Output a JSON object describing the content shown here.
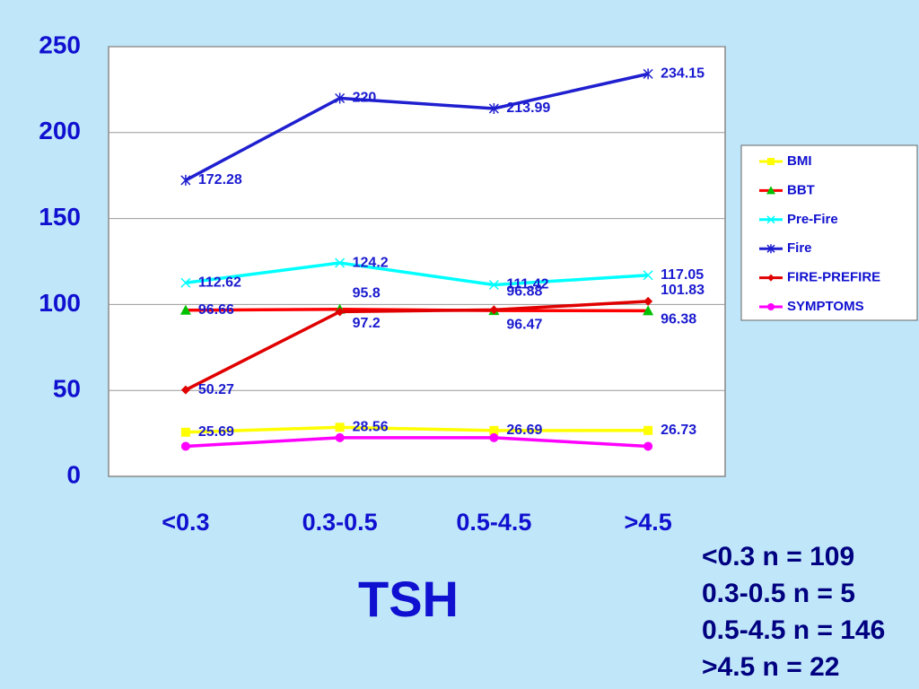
{
  "chart_data": {
    "type": "line",
    "categories": [
      "<0.3",
      "0.3-0.5",
      "0.5-4.5",
      ">4.5"
    ],
    "series": [
      {
        "name": "BMI",
        "color": "#ffff00",
        "marker": "square",
        "marker_color": "#ffff00",
        "values": [
          25.69,
          28.56,
          26.69,
          26.73
        ],
        "labels": true
      },
      {
        "name": "BBT",
        "color": "#ff0000",
        "marker": "triangle",
        "marker_color": "#00c000",
        "values": [
          96.66,
          97.2,
          96.47,
          96.38
        ],
        "labels": true
      },
      {
        "name": "Pre-Fire",
        "color": "#00ffff",
        "marker": "x",
        "marker_color": "#00ffff",
        "values": [
          112.62,
          124.2,
          111.42,
          117.05
        ],
        "labels": true
      },
      {
        "name": "Fire",
        "color": "#1f1fd0",
        "marker": "asterisk",
        "marker_color": "#1f1fd0",
        "values": [
          172.28,
          220,
          213.99,
          234.15
        ],
        "labels": true
      },
      {
        "name": "FIRE-PREFIRE",
        "color": "#e00000",
        "marker": "diamond",
        "marker_color": "#e00000",
        "values": [
          50.27,
          95.8,
          96.88,
          101.83
        ],
        "labels": true
      },
      {
        "name": "SYMPTOMS",
        "color": "#ff00ff",
        "marker": "circle",
        "marker_color": "#ff00ff",
        "values": [
          17.5,
          22.5,
          22.5,
          17.5
        ],
        "labels": false
      }
    ],
    "ylim": [
      0,
      250
    ],
    "yticks": [
      0,
      50,
      100,
      150,
      200,
      250
    ],
    "grid": true,
    "xlabel": "TSH",
    "annotations": [
      "<0.3 n = 109",
      "0.3-0.5 n = 5",
      "0.5-4.5 n = 146",
      ">4.5 n = 22"
    ],
    "legend": "right"
  }
}
